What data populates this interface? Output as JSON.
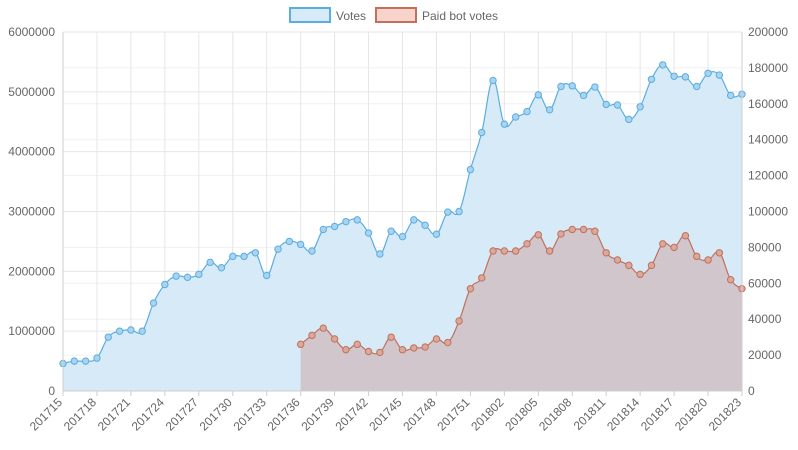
{
  "chart_data": {
    "type": "line",
    "title": "",
    "xlabel": "",
    "ylabel": "",
    "x": [
      "201715",
      "201716",
      "201717",
      "201718",
      "201719",
      "201720",
      "201721",
      "201722",
      "201723",
      "201724",
      "201725",
      "201726",
      "201727",
      "201728",
      "201729",
      "201730",
      "201731",
      "201732",
      "201733",
      "201734",
      "201735",
      "201736",
      "201737",
      "201738",
      "201739",
      "201740",
      "201741",
      "201742",
      "201743",
      "201744",
      "201745",
      "201746",
      "201747",
      "201748",
      "201749",
      "201750",
      "201751",
      "201752",
      "201801",
      "201802",
      "201803",
      "201804",
      "201805",
      "201806",
      "201807",
      "201808",
      "201809",
      "201810",
      "201811",
      "201812",
      "201813",
      "201814",
      "201815",
      "201816",
      "201817",
      "201818",
      "201819",
      "201820",
      "201821",
      "201822",
      "201823"
    ],
    "x_tick_labels": [
      "201715",
      "201718",
      "201721",
      "201724",
      "201727",
      "201730",
      "201733",
      "201736",
      "201739",
      "201742",
      "201745",
      "201748",
      "201751",
      "201802",
      "201805",
      "201808",
      "201811",
      "201814",
      "201817",
      "201820",
      "201823"
    ],
    "y_left_ticks": [
      "0",
      "1000000",
      "2000000",
      "3000000",
      "4000000",
      "5000000",
      "6000000"
    ],
    "y_right_ticks": [
      "0",
      "20000",
      "40000",
      "60000",
      "80000",
      "100000",
      "120000",
      "140000",
      "160000",
      "180000",
      "200000"
    ],
    "ylim_left": [
      0,
      6000000
    ],
    "ylim_right": [
      0,
      200000
    ],
    "grid": true,
    "legend_position": "top-center",
    "series": [
      {
        "name": "Votes",
        "axis": "left",
        "color": "#5aaee0",
        "fill": "#d6eaf8",
        "values": [
          460000,
          500000,
          500000,
          550000,
          900000,
          1000000,
          1020000,
          1000000,
          1470000,
          1780000,
          1920000,
          1900000,
          1950000,
          2150000,
          2060000,
          2250000,
          2250000,
          2310000,
          1930000,
          2370000,
          2500000,
          2450000,
          2340000,
          2700000,
          2750000,
          2830000,
          2860000,
          2640000,
          2290000,
          2670000,
          2580000,
          2860000,
          2770000,
          2620000,
          2990000,
          3000000,
          3700000,
          4320000,
          5190000,
          4460000,
          4580000,
          4670000,
          4950000,
          4700000,
          5090000,
          5100000,
          4940000,
          5080000,
          4790000,
          4780000,
          4540000,
          4750000,
          5210000,
          5450000,
          5260000,
          5250000,
          5090000,
          5310000,
          5280000,
          4940000,
          4960000
        ]
      },
      {
        "name": "Paid bot votes",
        "axis": "right",
        "color": "#c2705a",
        "fill": "#d0bfc4",
        "values": [
          null,
          null,
          null,
          null,
          null,
          null,
          null,
          null,
          null,
          null,
          null,
          null,
          null,
          null,
          null,
          null,
          null,
          null,
          null,
          null,
          null,
          26000,
          31000,
          35000,
          29000,
          23000,
          26000,
          22000,
          21500,
          30000,
          23000,
          24000,
          24500,
          29000,
          27000,
          39000,
          57000,
          63000,
          78000,
          78000,
          78000,
          82000,
          87000,
          78000,
          87500,
          90000,
          90000,
          89000,
          77000,
          73000,
          70000,
          65000,
          70000,
          82000,
          80000,
          86500,
          75000,
          73000,
          77000,
          62000,
          57000
        ]
      }
    ]
  }
}
